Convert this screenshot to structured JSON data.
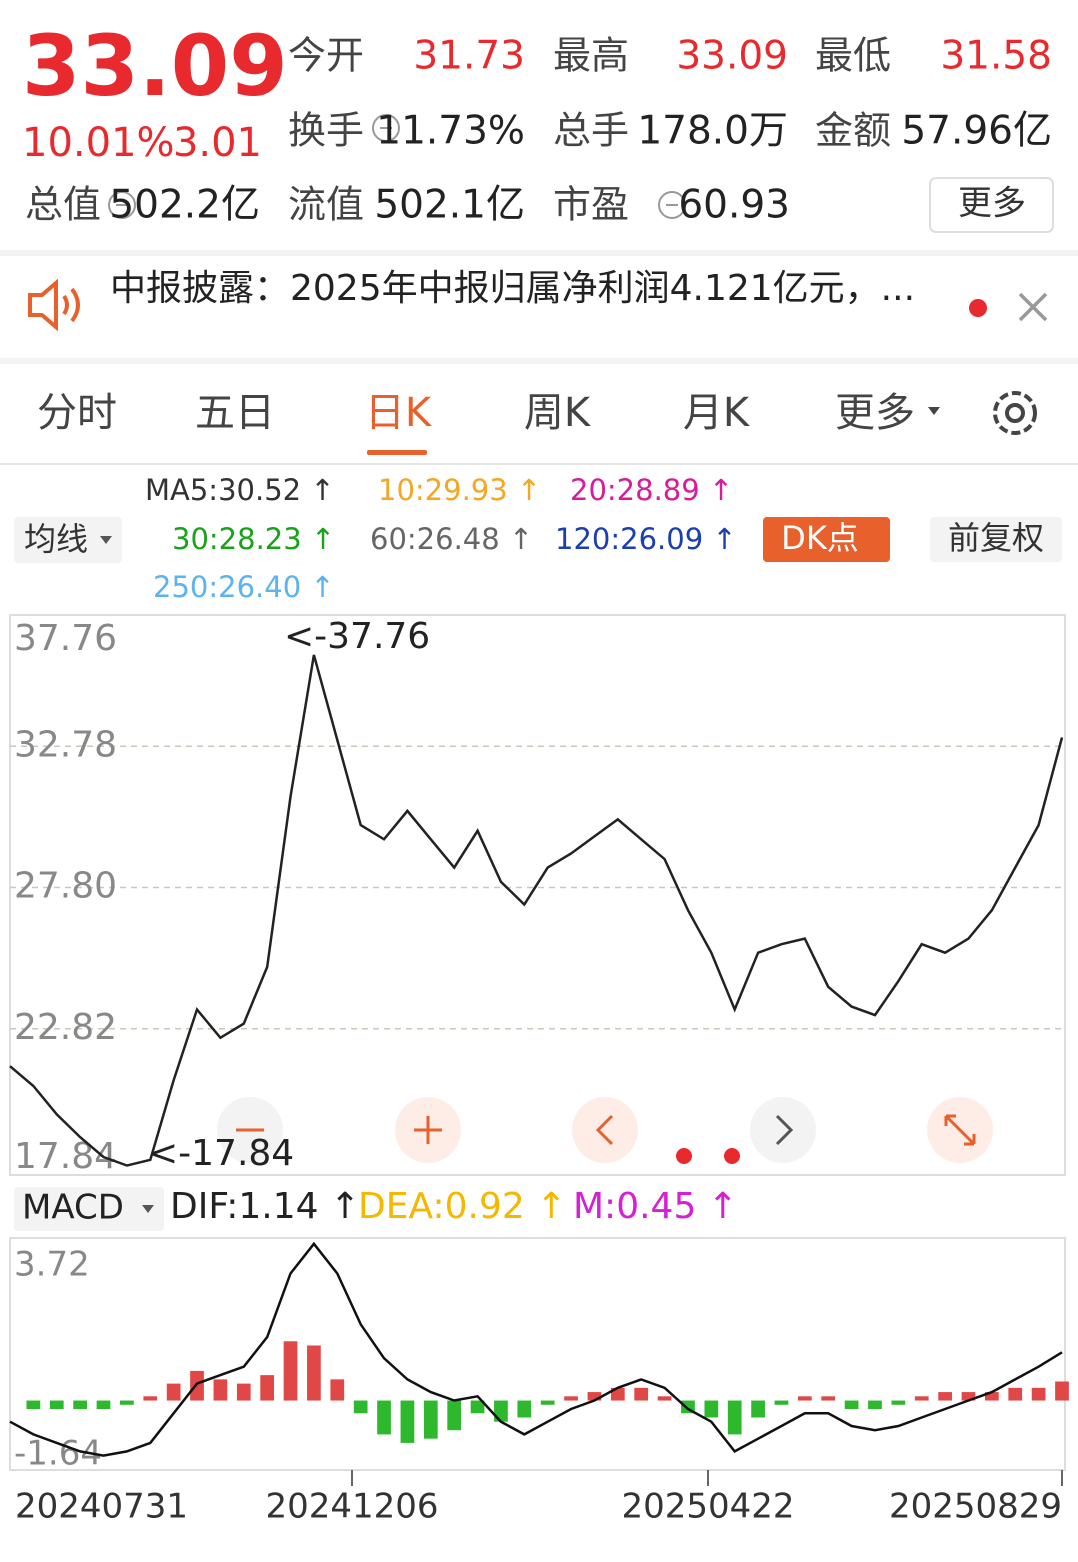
{
  "quote": {
    "price": "33.09",
    "change_pct": "10.01%",
    "change": "3.01",
    "fields": [
      [
        {
          "label": "今开",
          "value": "31.73"
        },
        {
          "label": "最高",
          "value": "33.09"
        },
        {
          "label": "最低",
          "value": "31.58"
        }
      ],
      [
        {
          "label": "换手",
          "value": "11.73%"
        },
        {
          "label": "总手",
          "value": "178.0万"
        },
        {
          "label": "金额",
          "value": "57.96亿"
        }
      ],
      [
        {
          "label": "总值",
          "value": "502.2亿"
        },
        {
          "label": "流值",
          "value": "502.1亿"
        },
        {
          "label": "市盈",
          "value": "60.93"
        }
      ]
    ],
    "more": "更多"
  },
  "news": "中报披露：2025年中报归属净利润4.121亿元，...",
  "tabs": [
    "分时",
    "五日",
    "日K",
    "周K",
    "月K",
    "更多"
  ],
  "ma_selector": "均线",
  "ma_legend": [
    {
      "text": "MA5:30.52 ↑",
      "color": "#333333"
    },
    {
      "text": "10:29.93 ↑",
      "color": "#f5a623"
    },
    {
      "text": "20:28.89 ↑",
      "color": "#d81b9c"
    },
    {
      "text": "30:28.23 ↑",
      "color": "#1aa31a"
    },
    {
      "text": "60:26.48 ↑",
      "color": "#666666"
    },
    {
      "text": "120:26.09 ↑",
      "color": "#1a3fb0"
    },
    {
      "text": "250:26.40 ↑",
      "color": "#5bb3f0"
    }
  ],
  "dk_button": "DK点",
  "fq_button": "前复权",
  "chart_data": [
    {
      "type": "line",
      "ylim": [
        17.84,
        37.76
      ],
      "yticks": [
        17.84,
        22.82,
        {
          "value": 27.8,
          "label": "27.80"
        },
        32.78,
        37.76
      ],
      "grid": true,
      "annotations": [
        "<-37.76",
        "<-17.84"
      ],
      "series": [
        {
          "color": "#222222",
          "values": [
            21.5,
            20.8,
            19.8,
            19.0,
            18.3,
            18.0,
            18.2,
            21.0,
            23.5,
            22.5,
            23.0,
            25.0,
            31.0,
            36.0,
            33.0,
            30.0,
            29.5,
            30.5,
            29.5,
            28.5,
            29.8,
            28.0,
            27.2,
            28.5,
            29.0,
            29.6,
            30.2,
            29.5,
            28.8,
            27.0,
            25.5,
            23.5,
            25.5,
            25.8,
            26.0,
            24.3,
            23.6,
            23.3,
            24.5,
            25.8,
            25.5,
            26.0,
            27.0,
            28.5,
            30.0,
            33.09
          ]
        }
      ],
      "x_labels": [
        "20240731",
        "20241206",
        "20250422",
        "20250829"
      ]
    },
    {
      "type": "macd",
      "indicator": "MACD",
      "legend": [
        {
          "text": "DIF:1.14 ↑",
          "color": "#222222"
        },
        {
          "text": "DEA:0.92 ↑",
          "color": "#f5b800"
        },
        {
          "text": "M:0.45 ↑",
          "color": "#d61fd6"
        }
      ],
      "ylim": [
        -1.64,
        3.72
      ],
      "yticks": [
        3.72,
        -1.64
      ],
      "series": [
        {
          "color": "#111111",
          "values": [
            -0.5,
            -0.8,
            -1.0,
            -1.2,
            -1.3,
            -1.2,
            -1.0,
            -0.3,
            0.4,
            0.6,
            0.8,
            1.5,
            3.0,
            3.7,
            3.0,
            1.8,
            1.0,
            0.5,
            0.2,
            0.0,
            0.1,
            -0.5,
            -0.8,
            -0.5,
            -0.2,
            0.0,
            0.3,
            0.5,
            0.3,
            -0.2,
            -0.5,
            -1.2,
            -0.9,
            -0.6,
            -0.3,
            -0.3,
            -0.6,
            -0.7,
            -0.6,
            -0.4,
            -0.2,
            0.0,
            0.2,
            0.5,
            0.8,
            1.14
          ]
        }
      ],
      "histogram": {
        "up_color": "#e04848",
        "down_color": "#2db82d",
        "values": [
          0,
          -0.2,
          -0.2,
          -0.2,
          -0.2,
          -0.1,
          0.1,
          0.4,
          0.7,
          0.5,
          0.4,
          0.6,
          1.4,
          1.3,
          0.5,
          -0.3,
          -0.8,
          -1.0,
          -0.9,
          -0.7,
          -0.3,
          -0.5,
          -0.4,
          -0.1,
          0.1,
          0.2,
          0.3,
          0.3,
          0.1,
          -0.3,
          -0.4,
          -0.8,
          -0.4,
          -0.1,
          0.1,
          0.1,
          -0.2,
          -0.2,
          -0.1,
          0.1,
          0.2,
          0.2,
          0.2,
          0.3,
          0.3,
          0.45
        ]
      }
    }
  ]
}
